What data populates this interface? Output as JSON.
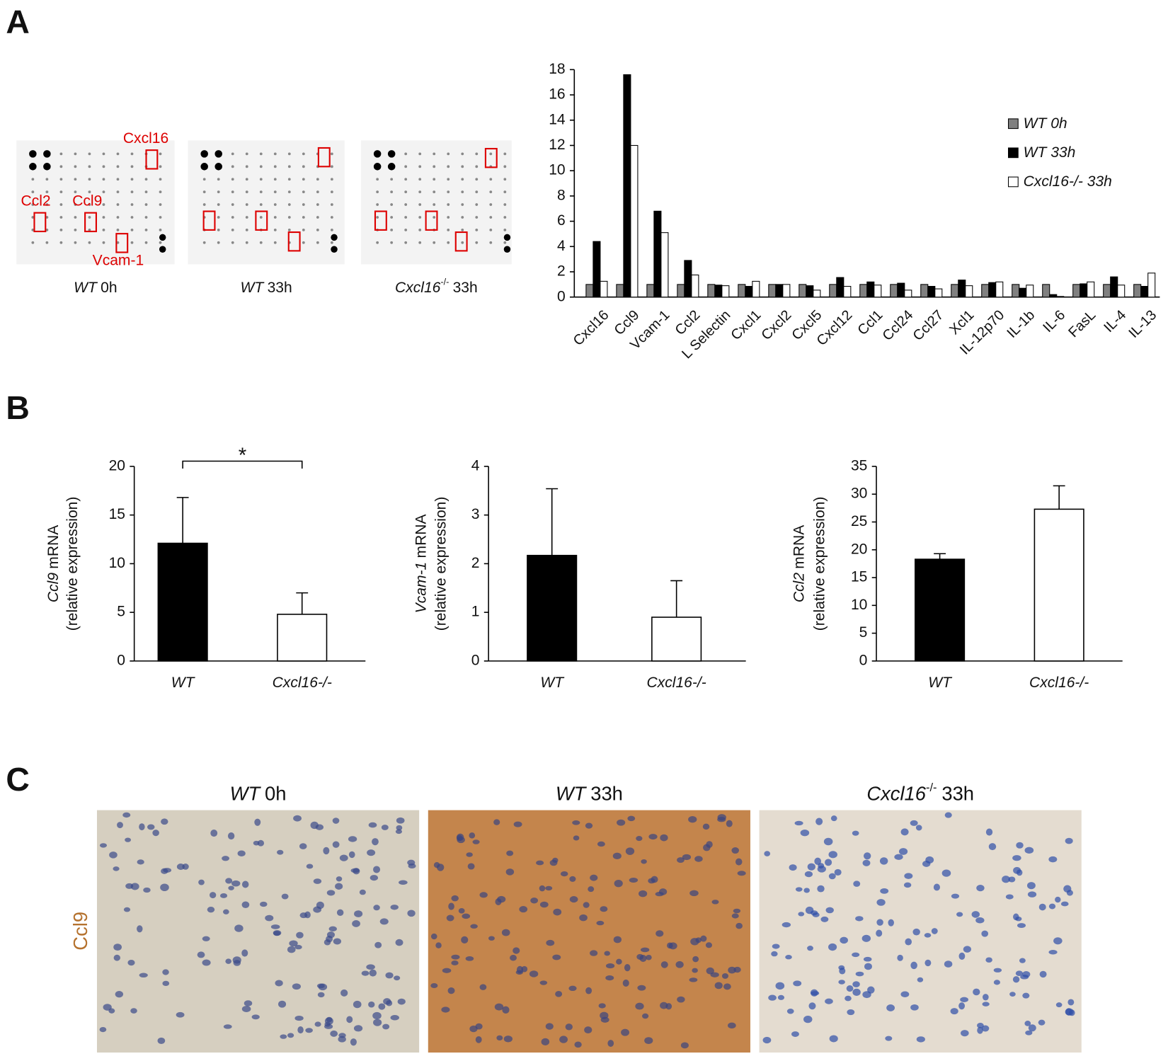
{
  "panels": {
    "a": "A",
    "b": "B",
    "c": "C"
  },
  "blots": {
    "spots": [
      "Cxcl16",
      "Ccl2",
      "Ccl9",
      "Vcam-1"
    ],
    "captions": [
      {
        "gene": "WT",
        "time": "0h"
      },
      {
        "gene": "WT",
        "time": "33h"
      },
      {
        "gene": "Cxcl16",
        "sup": "-/-",
        "time": "33h"
      }
    ]
  },
  "chart_data": [
    {
      "type": "bar",
      "categories": [
        "Cxcl16",
        "Ccl9",
        "Vcam-1",
        "Ccl2",
        "L Selectin",
        "Cxcl1",
        "Cxcl2",
        "Cxcl5",
        "Cxcl12",
        "Ccl1",
        "Ccl24",
        "Ccl27",
        "Xcl1",
        "IL-12p70",
        "IL-1b",
        "IL-6",
        "FasL",
        "IL-4",
        "IL-13"
      ],
      "series": [
        {
          "name": "WT 0h",
          "color": "#808080",
          "values": [
            1,
            1,
            1,
            1,
            1,
            1,
            1,
            1,
            1,
            1,
            1,
            1,
            1,
            1,
            1,
            1,
            1,
            1,
            1
          ]
        },
        {
          "name": "WT 33h",
          "color": "#000000",
          "values": [
            4.4,
            17.6,
            6.8,
            2.9,
            0.95,
            0.85,
            1.0,
            0.9,
            1.55,
            1.2,
            1.1,
            0.85,
            1.35,
            1.15,
            0.7,
            0.2,
            1.05,
            1.6,
            0.85
          ]
        },
        {
          "name": "Cxcl16-/- 33h",
          "color": "#ffffff",
          "values": [
            1.25,
            12.0,
            5.1,
            1.75,
            0.9,
            1.25,
            1.0,
            0.55,
            0.85,
            0.95,
            0.55,
            0.65,
            0.9,
            1.2,
            0.95,
            0.05,
            1.2,
            0.95,
            1.9
          ]
        }
      ],
      "ylim": [
        0,
        18
      ],
      "yticks": [
        0,
        2,
        4,
        6,
        8,
        10,
        12,
        14,
        16,
        18
      ],
      "legend": "upper right"
    },
    {
      "type": "bar",
      "categories": [
        "WT",
        "Cxcl16-/-"
      ],
      "values": [
        12.1,
        4.8
      ],
      "errors": [
        4.7,
        2.2
      ],
      "colors": [
        "#000000",
        "#ffffff"
      ],
      "ylabel_gene": "Ccl9",
      "ylabel": "mRNA",
      "ylabel2": "(relative expression)",
      "ylim": [
        0,
        20
      ],
      "yticks": [
        0,
        5,
        10,
        15,
        20
      ],
      "annotation": "*"
    },
    {
      "type": "bar",
      "categories": [
        "WT",
        "Cxcl16-/-"
      ],
      "values": [
        2.17,
        0.9
      ],
      "errors": [
        1.37,
        0.75
      ],
      "colors": [
        "#000000",
        "#ffffff"
      ],
      "ylabel_gene": "Vcam-1",
      "ylabel": "mRNA",
      "ylabel2": "(relative expression)",
      "ylim": [
        0,
        4
      ],
      "yticks": [
        0,
        1,
        2,
        3,
        4
      ]
    },
    {
      "type": "bar",
      "categories": [
        "WT",
        "Cxcl16-/-"
      ],
      "values": [
        18.3,
        27.3
      ],
      "errors": [
        1.0,
        4.2
      ],
      "colors": [
        "#000000",
        "#ffffff"
      ],
      "ylabel_gene": "Ccl2",
      "ylabel": "mRNA",
      "ylabel2": "(relative expression)",
      "ylim": [
        0,
        35
      ],
      "yticks": [
        0,
        5,
        10,
        15,
        20,
        25,
        30,
        35
      ]
    }
  ],
  "ihc": {
    "stain": "Ccl9",
    "titles": [
      {
        "gene": "WT",
        "time": "0h"
      },
      {
        "gene": "WT",
        "time": "33h"
      },
      {
        "gene": "Cxcl16",
        "sup": "-/-",
        "time": "33h"
      }
    ]
  }
}
